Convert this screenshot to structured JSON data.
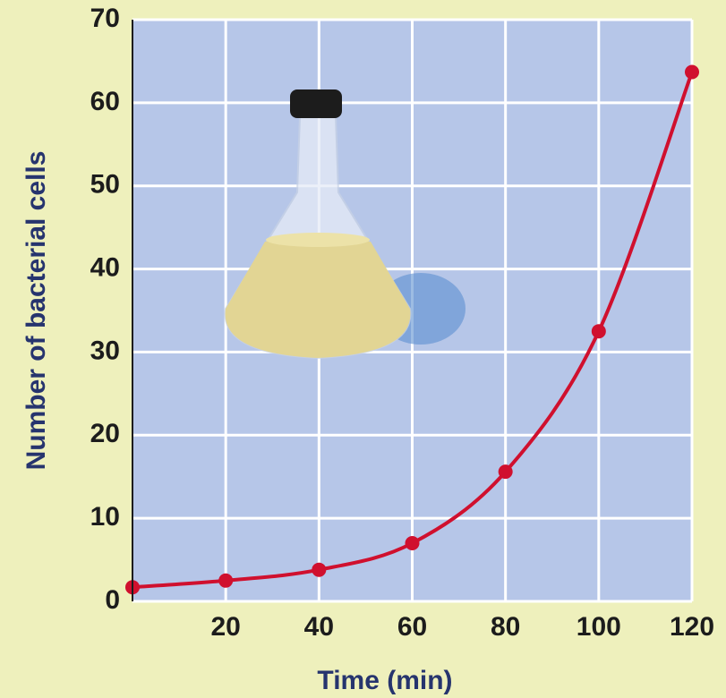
{
  "chart_data": {
    "type": "line",
    "x_label": "Time (min)",
    "y_label": "Number of bacterial cells",
    "x": [
      0,
      20,
      40,
      60,
      80,
      100,
      120
    ],
    "series": [
      {
        "color": "#d0102e",
        "values": [
          1.7,
          2.5,
          3.8,
          7,
          15.6,
          32.5,
          63.7
        ]
      }
    ],
    "xlim": [
      0,
      120
    ],
    "xticks": [
      20,
      40,
      60,
      80,
      100,
      120
    ],
    "ylim": [
      0,
      70
    ],
    "yticks": [
      0,
      10,
      20,
      30,
      40,
      50,
      60,
      70
    ],
    "grid": true
  }
}
